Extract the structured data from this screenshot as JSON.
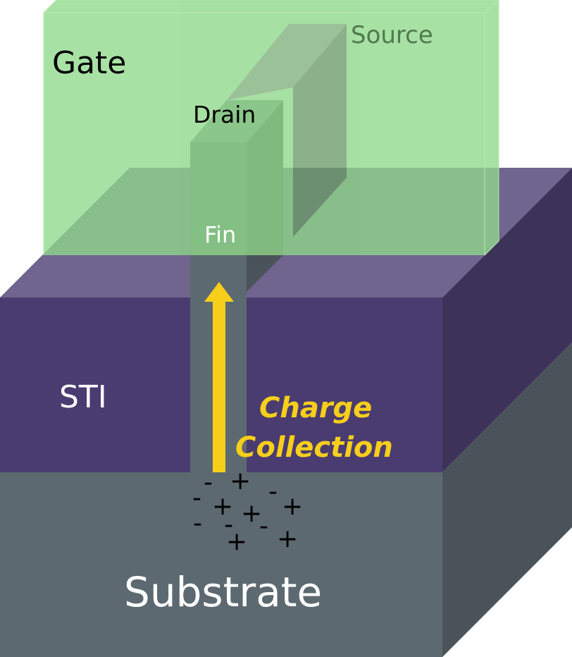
{
  "labels": {
    "gate": "Gate",
    "source": "Source",
    "drain": "Drain",
    "fin": "Fin",
    "sti": "STI",
    "substrate": "Substrate",
    "charge_collection_line1": "Charge",
    "charge_collection_line2": "Collection"
  },
  "charges": [
    "-",
    "+",
    "-",
    "-",
    "+",
    "+",
    "+",
    "-",
    "-",
    "-",
    "+",
    "+"
  ],
  "colors": {
    "gate_fill": "#8fd88a",
    "sti_front": "#4a3c70",
    "sti_top": "#6f658e",
    "sti_side": "#3d3259",
    "substrate_front": "#5d6970",
    "substrate_side": "#4b535a",
    "fin_front": "#5d6970",
    "fin_side": "#4b535a",
    "fin_top": "#808890",
    "arrow": "#f7cf1b",
    "charge_label": "#f7cf1b",
    "source_label": "#4f7a4d",
    "text_dark": "#000000",
    "text_light": "#ffffff"
  }
}
